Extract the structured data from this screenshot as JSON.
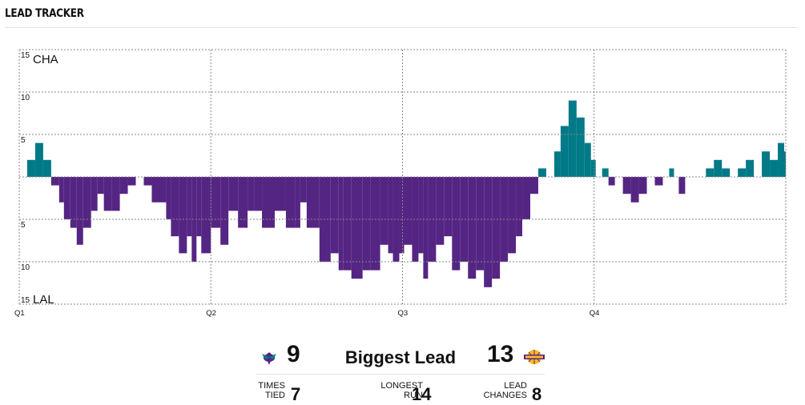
{
  "header": {
    "title": "LEAD TRACKER"
  },
  "colors": {
    "cha": "#007a87",
    "lal": "#552583",
    "grid": "#888888",
    "divider": "#e2e2e2"
  },
  "chart_data": {
    "type": "bar",
    "title": "",
    "ylim": [
      -15,
      15
    ],
    "xlim": [
      0,
      48
    ],
    "yticks": [
      {
        "value": 15,
        "label": "15"
      },
      {
        "value": 10,
        "label": "10"
      },
      {
        "value": 5,
        "label": "5"
      },
      {
        "value": -5,
        "label": "5"
      },
      {
        "value": -10,
        "label": "10"
      },
      {
        "value": -15,
        "label": "15"
      }
    ],
    "team_labels": {
      "top": "CHA",
      "bottom": "LAL"
    },
    "quarter_labels": [
      "Q1",
      "Q2",
      "Q3",
      "Q4"
    ],
    "x_unit": "game minutes",
    "y_unit": "lead (positive = CHA, negative = LAL)",
    "grid": true,
    "series": [
      {
        "x": [
          0.5,
          1.0,
          1.5,
          2.0,
          2.5,
          2.8,
          3.2,
          3.6,
          4.0,
          4.5,
          4.9,
          5.3,
          5.8,
          6.3,
          6.8,
          7.3,
          7.8,
          8.3,
          9.2,
          9.5,
          10.0,
          10.5,
          10.8,
          11.1,
          11.4,
          12.0,
          12.6,
          13.1,
          13.7,
          14.3,
          14.7,
          15.2,
          16.0,
          16.7,
          17.3,
          17.6,
          18.0,
          18.8,
          19.5,
          20.0,
          20.3,
          20.8,
          21.5,
          22.0,
          22.6,
          23.1,
          23.4,
          23.8,
          24.1,
          24.6,
          25.0,
          25.3,
          25.6,
          26.1,
          26.6,
          27.1,
          27.6,
          28.1,
          28.6,
          29.1,
          29.6,
          30.1,
          30.6,
          31.1,
          31.5,
          32.0,
          32.5,
          33.0,
          33.5,
          33.9,
          34.4,
          34.9,
          35.4,
          35.8,
          36.1,
          36.5,
          36.9,
          37.3,
          37.8,
          38.3,
          38.8,
          39.3,
          39.8,
          40.3,
          40.7,
          41.0,
          41.3,
          41.7,
          42.0,
          42.5,
          43.0,
          43.5,
          44.0,
          44.5,
          45.0,
          45.5,
          46.0,
          46.5,
          47.0,
          47.5,
          47.9
        ],
        "values": [
          2,
          4,
          2,
          -1,
          -3,
          -5,
          -6,
          -8,
          -6,
          -4,
          -2,
          -4,
          -4,
          -2,
          -1,
          0,
          -1,
          -3,
          -5,
          -7,
          -9,
          -7,
          -10,
          -7,
          -9,
          -6,
          -8,
          -4,
          -6,
          -4,
          -4,
          -6,
          -4,
          -6,
          -6,
          -3,
          -6,
          -10,
          -9,
          -11,
          -11,
          -12,
          -11,
          -11,
          -8,
          -9,
          -10,
          -9,
          -8,
          -10,
          -9,
          -12,
          -10,
          -8,
          -7,
          -11,
          -10,
          -12,
          -11,
          -13,
          -12,
          -10,
          -9,
          -7,
          -5,
          -2,
          1,
          0,
          3,
          6,
          9,
          7,
          4,
          2,
          0,
          1,
          -1,
          0,
          -2,
          -3,
          -2,
          0,
          -1,
          0,
          1,
          0,
          -2,
          0,
          0,
          0,
          1,
          2,
          1,
          0,
          1,
          2,
          0,
          3,
          2,
          4,
          3
        ]
      }
    ]
  },
  "summary": {
    "biggest_lead_label": "Biggest Lead",
    "cha_biggest": "9",
    "lal_biggest": "13",
    "times_tied_label_1": "TIMES",
    "times_tied_label_2": "TIED",
    "times_tied": "7",
    "longest_run_label_1": "LONGEST",
    "longest_run_label_2": "RUN",
    "longest_run": "14",
    "lead_changes_label_1": "LEAD",
    "lead_changes_label_2": "CHANGES",
    "lead_changes": "8"
  },
  "icons": {
    "cha_logo": "hornet-logo",
    "lal_logo": "lakers-logo"
  }
}
